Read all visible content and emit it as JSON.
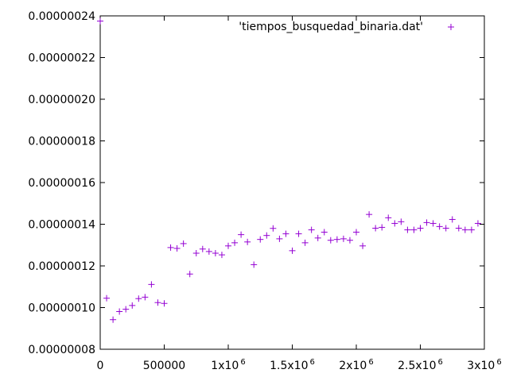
{
  "chart_data": {
    "type": "scatter",
    "title": "",
    "xlabel": "",
    "ylabel": "",
    "xlim": [
      0,
      3000000
    ],
    "ylim": [
      8e-08,
      2.4e-07
    ],
    "grid": false,
    "legend_position": "top-right",
    "x_ticks": [
      {
        "value": 0,
        "label": "0",
        "exp": ""
      },
      {
        "value": 500000,
        "label": "500000",
        "exp": ""
      },
      {
        "value": 1000000,
        "label": "1x10",
        "exp": "6"
      },
      {
        "value": 1500000,
        "label": "1.5x10",
        "exp": "6"
      },
      {
        "value": 2000000,
        "label": "2x10",
        "exp": "6"
      },
      {
        "value": 2500000,
        "label": "2.5x10",
        "exp": "6"
      },
      {
        "value": 3000000,
        "label": "3x10",
        "exp": "6"
      }
    ],
    "y_ticks": [
      {
        "value": 8e-08,
        "label": "0.00000008"
      },
      {
        "value": 1e-07,
        "label": "0.00000010"
      },
      {
        "value": 1.2e-07,
        "label": "0.00000012"
      },
      {
        "value": 1.4e-07,
        "label": "0.00000014"
      },
      {
        "value": 1.6e-07,
        "label": "0.00000016"
      },
      {
        "value": 1.8e-07,
        "label": "0.00000018"
      },
      {
        "value": 2e-07,
        "label": "0.00000020"
      },
      {
        "value": 2.2e-07,
        "label": "0.00000022"
      },
      {
        "value": 2.4e-07,
        "label": "0.00000024"
      }
    ],
    "series": [
      {
        "name": "'tiempos_busquedad_binaria.dat'",
        "color": "#9400d3",
        "marker": "plus",
        "points": [
          [
            0,
            2.375e-07
          ],
          [
            50000,
            1.045e-07
          ],
          [
            100000,
            9.42e-08
          ],
          [
            150000,
            9.81e-08
          ],
          [
            200000,
            9.92e-08
          ],
          [
            250000,
            1.01e-07
          ],
          [
            300000,
            1.043e-07
          ],
          [
            350000,
            1.05e-07
          ],
          [
            400000,
            1.111e-07
          ],
          [
            450000,
            1.024e-07
          ],
          [
            500000,
            1.02e-07
          ],
          [
            550000,
            1.288e-07
          ],
          [
            600000,
            1.284e-07
          ],
          [
            650000,
            1.307e-07
          ],
          [
            700000,
            1.161e-07
          ],
          [
            750000,
            1.261e-07
          ],
          [
            800000,
            1.281e-07
          ],
          [
            850000,
            1.269e-07
          ],
          [
            900000,
            1.261e-07
          ],
          [
            950000,
            1.253e-07
          ],
          [
            1000000,
            1.296e-07
          ],
          [
            1050000,
            1.311e-07
          ],
          [
            1100000,
            1.35e-07
          ],
          [
            1150000,
            1.315e-07
          ],
          [
            1200000,
            1.206e-07
          ],
          [
            1250000,
            1.327e-07
          ],
          [
            1300000,
            1.346e-07
          ],
          [
            1350000,
            1.38e-07
          ],
          [
            1400000,
            1.33e-07
          ],
          [
            1450000,
            1.354e-07
          ],
          [
            1500000,
            1.273e-07
          ],
          [
            1550000,
            1.354e-07
          ],
          [
            1600000,
            1.311e-07
          ],
          [
            1650000,
            1.373e-07
          ],
          [
            1700000,
            1.334e-07
          ],
          [
            1750000,
            1.362e-07
          ],
          [
            1800000,
            1.323e-07
          ],
          [
            1850000,
            1.327e-07
          ],
          [
            1900000,
            1.33e-07
          ],
          [
            1950000,
            1.323e-07
          ],
          [
            2000000,
            1.362e-07
          ],
          [
            2050000,
            1.296e-07
          ],
          [
            2100000,
            1.447e-07
          ],
          [
            2150000,
            1.381e-07
          ],
          [
            2200000,
            1.385e-07
          ],
          [
            2250000,
            1.431e-07
          ],
          [
            2300000,
            1.404e-07
          ],
          [
            2350000,
            1.412e-07
          ],
          [
            2400000,
            1.373e-07
          ],
          [
            2450000,
            1.373e-07
          ],
          [
            2500000,
            1.381e-07
          ],
          [
            2550000,
            1.408e-07
          ],
          [
            2600000,
            1.404e-07
          ],
          [
            2650000,
            1.389e-07
          ],
          [
            2700000,
            1.381e-07
          ],
          [
            2750000,
            1.423e-07
          ],
          [
            2800000,
            1.381e-07
          ],
          [
            2850000,
            1.373e-07
          ],
          [
            2900000,
            1.373e-07
          ],
          [
            2950000,
            1.404e-07
          ]
        ]
      }
    ]
  }
}
